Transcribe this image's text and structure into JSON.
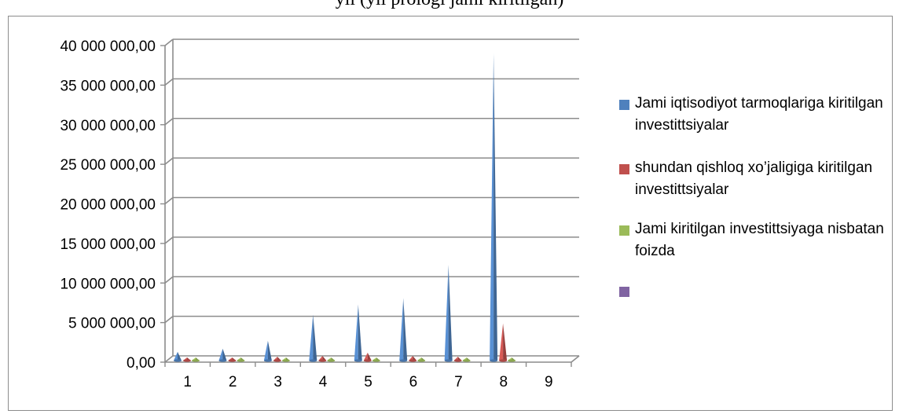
{
  "header": {
    "caption": "yil (yil prologi jami kiritilgan)"
  },
  "chart_data": {
    "type": "bar",
    "shape": "cone-3d",
    "categories": [
      "1",
      "2",
      "3",
      "4",
      "5",
      "6",
      "7",
      "8",
      "9"
    ],
    "ylim": [
      0,
      40000000
    ],
    "y_ticks": [
      "0,00",
      "5 000 000,00",
      "10 000 000,00",
      "15 000 000,00",
      "20 000 000,00",
      "25 000 000,00",
      "30 000 000,00",
      "35 000 000,00",
      "40 000 000,00"
    ],
    "grid": true,
    "legend_position": "right",
    "series": [
      {
        "name": "Jami iqtisodiyot tarmoqlariga kiritilgan investittsiyalar",
        "color": "#4f81bd",
        "values": [
          1300000,
          1700000,
          2700000,
          6000000,
          7300000,
          8100000,
          12300000,
          39000000,
          0
        ]
      },
      {
        "name": "shundan qishloq xo’jaligiga kiritilgan investittsiyalar",
        "color": "#c0504d",
        "values": [
          500000,
          400000,
          700000,
          800000,
          1200000,
          800000,
          700000,
          4900000,
          0
        ]
      },
      {
        "name": "Jami kiritilgan investittsiyaga nisbatan foizda",
        "color": "#9bbb59",
        "values": [
          20,
          20,
          20,
          20,
          20,
          20,
          20,
          20,
          0
        ]
      },
      {
        "name": "",
        "color": "#8064a2",
        "values": [
          0,
          0,
          0,
          0,
          0,
          0,
          0,
          0,
          0
        ]
      }
    ]
  }
}
